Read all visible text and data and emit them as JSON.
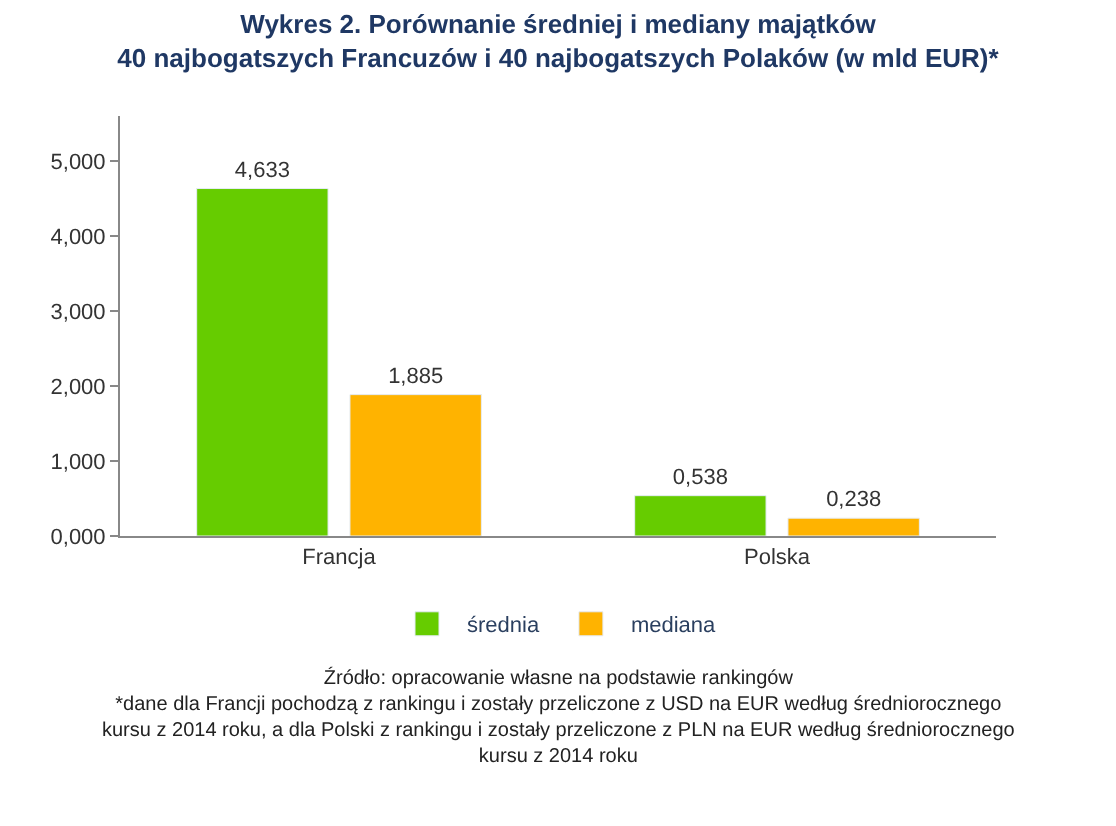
{
  "chart_data": {
    "type": "bar",
    "title": "Wykres 2. Porównanie średniej i mediany majątków\n40 najbogatszych Francuzów i 40 najbogatszych Polaków (w mld EUR)*",
    "categories": [
      "Francja",
      "Polska"
    ],
    "series": [
      {
        "name": "średnia",
        "color": "#66cc00",
        "values": [
          4.633,
          0.538
        ],
        "value_labels": [
          "4,633",
          "0,538"
        ]
      },
      {
        "name": "mediana",
        "color": "#ffb300",
        "values": [
          1.885,
          0.238
        ],
        "value_labels": [
          "1,885",
          "0,238"
        ]
      }
    ],
    "ylim": [
      0,
      5.6
    ],
    "yticks": [
      {
        "value": 0,
        "label": "0,000"
      },
      {
        "value": 1,
        "label": "1,000"
      },
      {
        "value": 2,
        "label": "2,000"
      },
      {
        "value": 3,
        "label": "3,000"
      },
      {
        "value": 4,
        "label": "4,000"
      },
      {
        "value": 5,
        "label": "5,000"
      }
    ],
    "grid": false,
    "legend": "bottom",
    "annotations": [
      "Źródło: opracowanie własne na podstawie rankingów",
      "*dane dla Francji pochodzą z rankingu i zostały przeliczone z USD na EUR według średniorocznego kursu z 2014 roku, a dla Polski z rankingu i zostały przeliczone z PLN na EUR według średniorocznego kursu z 2014 roku"
    ]
  }
}
